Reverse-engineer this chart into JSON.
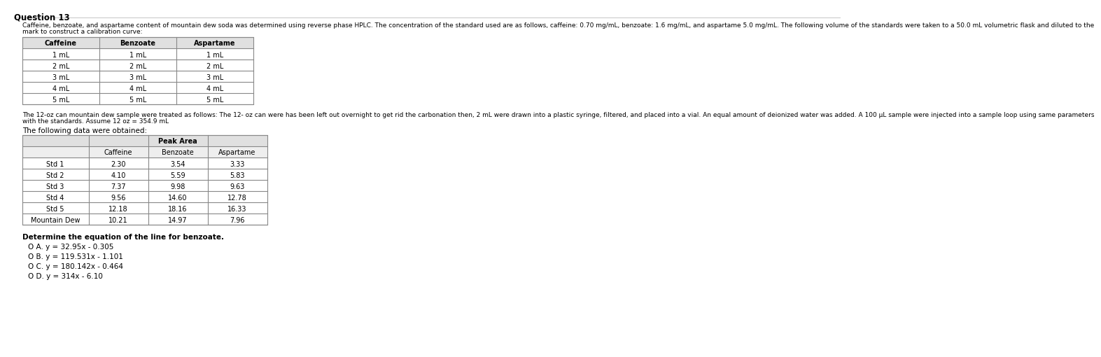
{
  "question_number": "Question 13",
  "intro_line1": "Caffeine, benzoate, and aspartame content of mountain dew soda was determined using reverse phase HPLC. The concentration of the standard used are as follows, caffeine: 0.70 mg/mL, benzoate: 1.6 mg/mL, and aspartame 5.0 mg/mL. The following volume of the standards were taken to a 50.0 mL volumetric flask and diluted to the",
  "intro_line2": "mark to construct a calibration curve:",
  "table1_headers": [
    "Caffeine",
    "Benzoate",
    "Aspartame"
  ],
  "table1_rows": [
    [
      "1 mL",
      "1 mL",
      "1 mL"
    ],
    [
      "2 mL",
      "2 mL",
      "2 mL"
    ],
    [
      "3 mL",
      "3 mL",
      "3 mL"
    ],
    [
      "4 mL",
      "4 mL",
      "4 mL"
    ],
    [
      "5 mL",
      "5 mL",
      "5 mL"
    ]
  ],
  "mid_line1": "The 12-oz can mountain dew sample were treated as follows: The 12- oz can were has been left out overnight to get rid the carbonation then, 2 mL were drawn into a plastic syringe, filtered, and placed into a vial. An equal amount of deionized water was added. A 100 µL sample were injected into a sample loop using same parameters",
  "mid_line2": "with the standards. Assume 12 oz = 354.9 mL",
  "data_label": "The following data were obtained:",
  "table2_main_header": "Peak Area",
  "table2_sub_headers": [
    "Caffeine",
    "Benzoate",
    "Aspartame"
  ],
  "table2_rows": [
    [
      "Std 1",
      "2.30",
      "3.54",
      "3.33"
    ],
    [
      "Std 2",
      "4.10",
      "5.59",
      "5.83"
    ],
    [
      "Std 3",
      "7.37",
      "9.98",
      "9.63"
    ],
    [
      "Std 4",
      "9.56",
      "14.60",
      "12.78"
    ],
    [
      "Std 5",
      "12.18",
      "18.16",
      "16.33"
    ],
    [
      "Mountain Dew",
      "10.21",
      "14.97",
      "7.96"
    ]
  ],
  "question_text": "Determine the equation of the line for benzoate.",
  "options": [
    [
      "O A.",
      "y = 32.95x - 0.305"
    ],
    [
      "O B.",
      "y = 119.531x - 1.101"
    ],
    [
      "O C.",
      "y = 180.142x - 0.464"
    ],
    [
      "O D.",
      "y = 314x - 6.10"
    ]
  ],
  "bg_color": "#ffffff",
  "title_fs": 8.5,
  "body_fs": 6.5,
  "table_fs": 7.0,
  "option_fs": 7.5,
  "label_fs": 7.5
}
